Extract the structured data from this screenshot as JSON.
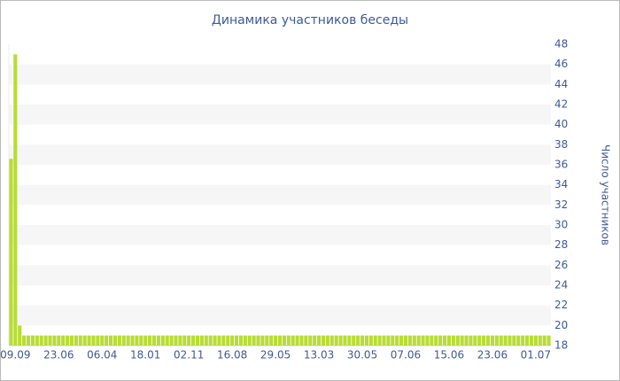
{
  "chart_data": {
    "type": "bar",
    "title": "Динамика участников беседы",
    "y_label": "Число участников",
    "categories": [
      null,
      "09.09",
      null,
      null,
      null,
      null,
      null,
      null,
      null,
      null,
      null,
      "23.06",
      null,
      null,
      null,
      null,
      null,
      null,
      null,
      null,
      null,
      "06.04",
      null,
      null,
      null,
      null,
      null,
      null,
      null,
      null,
      null,
      "18.01",
      null,
      null,
      null,
      null,
      null,
      null,
      null,
      null,
      null,
      "02.11",
      null,
      null,
      null,
      null,
      null,
      null,
      null,
      null,
      null,
      "16.08",
      null,
      null,
      null,
      null,
      null,
      null,
      null,
      null,
      null,
      "29.05",
      null,
      null,
      null,
      null,
      null,
      null,
      null,
      null,
      null,
      "13.03",
      null,
      null,
      null,
      null,
      null,
      null,
      null,
      null,
      null,
      "30.05",
      null,
      null,
      null,
      null,
      null,
      null,
      null,
      null,
      null,
      "07.06",
      null,
      null,
      null,
      null,
      null,
      null,
      null,
      null,
      null,
      "15.06",
      null,
      null,
      null,
      null,
      null,
      null,
      null,
      null,
      null,
      "23.06",
      null,
      null,
      null,
      null,
      null,
      null,
      null,
      null,
      null,
      "01.07",
      null,
      null,
      null
    ],
    "values": [
      36.6,
      47,
      20,
      19,
      19,
      19,
      19,
      19,
      19,
      19,
      19,
      19,
      19,
      19,
      19,
      19,
      19,
      19,
      19,
      19,
      19,
      19,
      19,
      19,
      19,
      19,
      19,
      19,
      19,
      19,
      19,
      19,
      19,
      19,
      19,
      19,
      19,
      19,
      19,
      19,
      19,
      19,
      19,
      19,
      19,
      19,
      19,
      19,
      19,
      19,
      19,
      19,
      19,
      19,
      19,
      19,
      19,
      19,
      19,
      19,
      19,
      19,
      19,
      19,
      19,
      19,
      19,
      19,
      19,
      19,
      19,
      19,
      19,
      19,
      19,
      19,
      19,
      19,
      19,
      19,
      19,
      19,
      19,
      19,
      19,
      19,
      19,
      19,
      19,
      19,
      19,
      19,
      19,
      19,
      19,
      19,
      19,
      19,
      19,
      19,
      19,
      19,
      19,
      19,
      19,
      19,
      19,
      19,
      19,
      19,
      19,
      19,
      19,
      19,
      19,
      19,
      19,
      19,
      19,
      19,
      19,
      19,
      19,
      19,
      19
    ],
    "color": "#b8dc34",
    "ylim": [
      18,
      48
    ],
    "yticks": [
      18,
      20,
      22,
      24,
      26,
      28,
      30,
      32,
      34,
      36,
      38,
      40,
      42,
      44,
      46,
      48
    ],
    "grid": true,
    "y_axis_side": "right"
  }
}
